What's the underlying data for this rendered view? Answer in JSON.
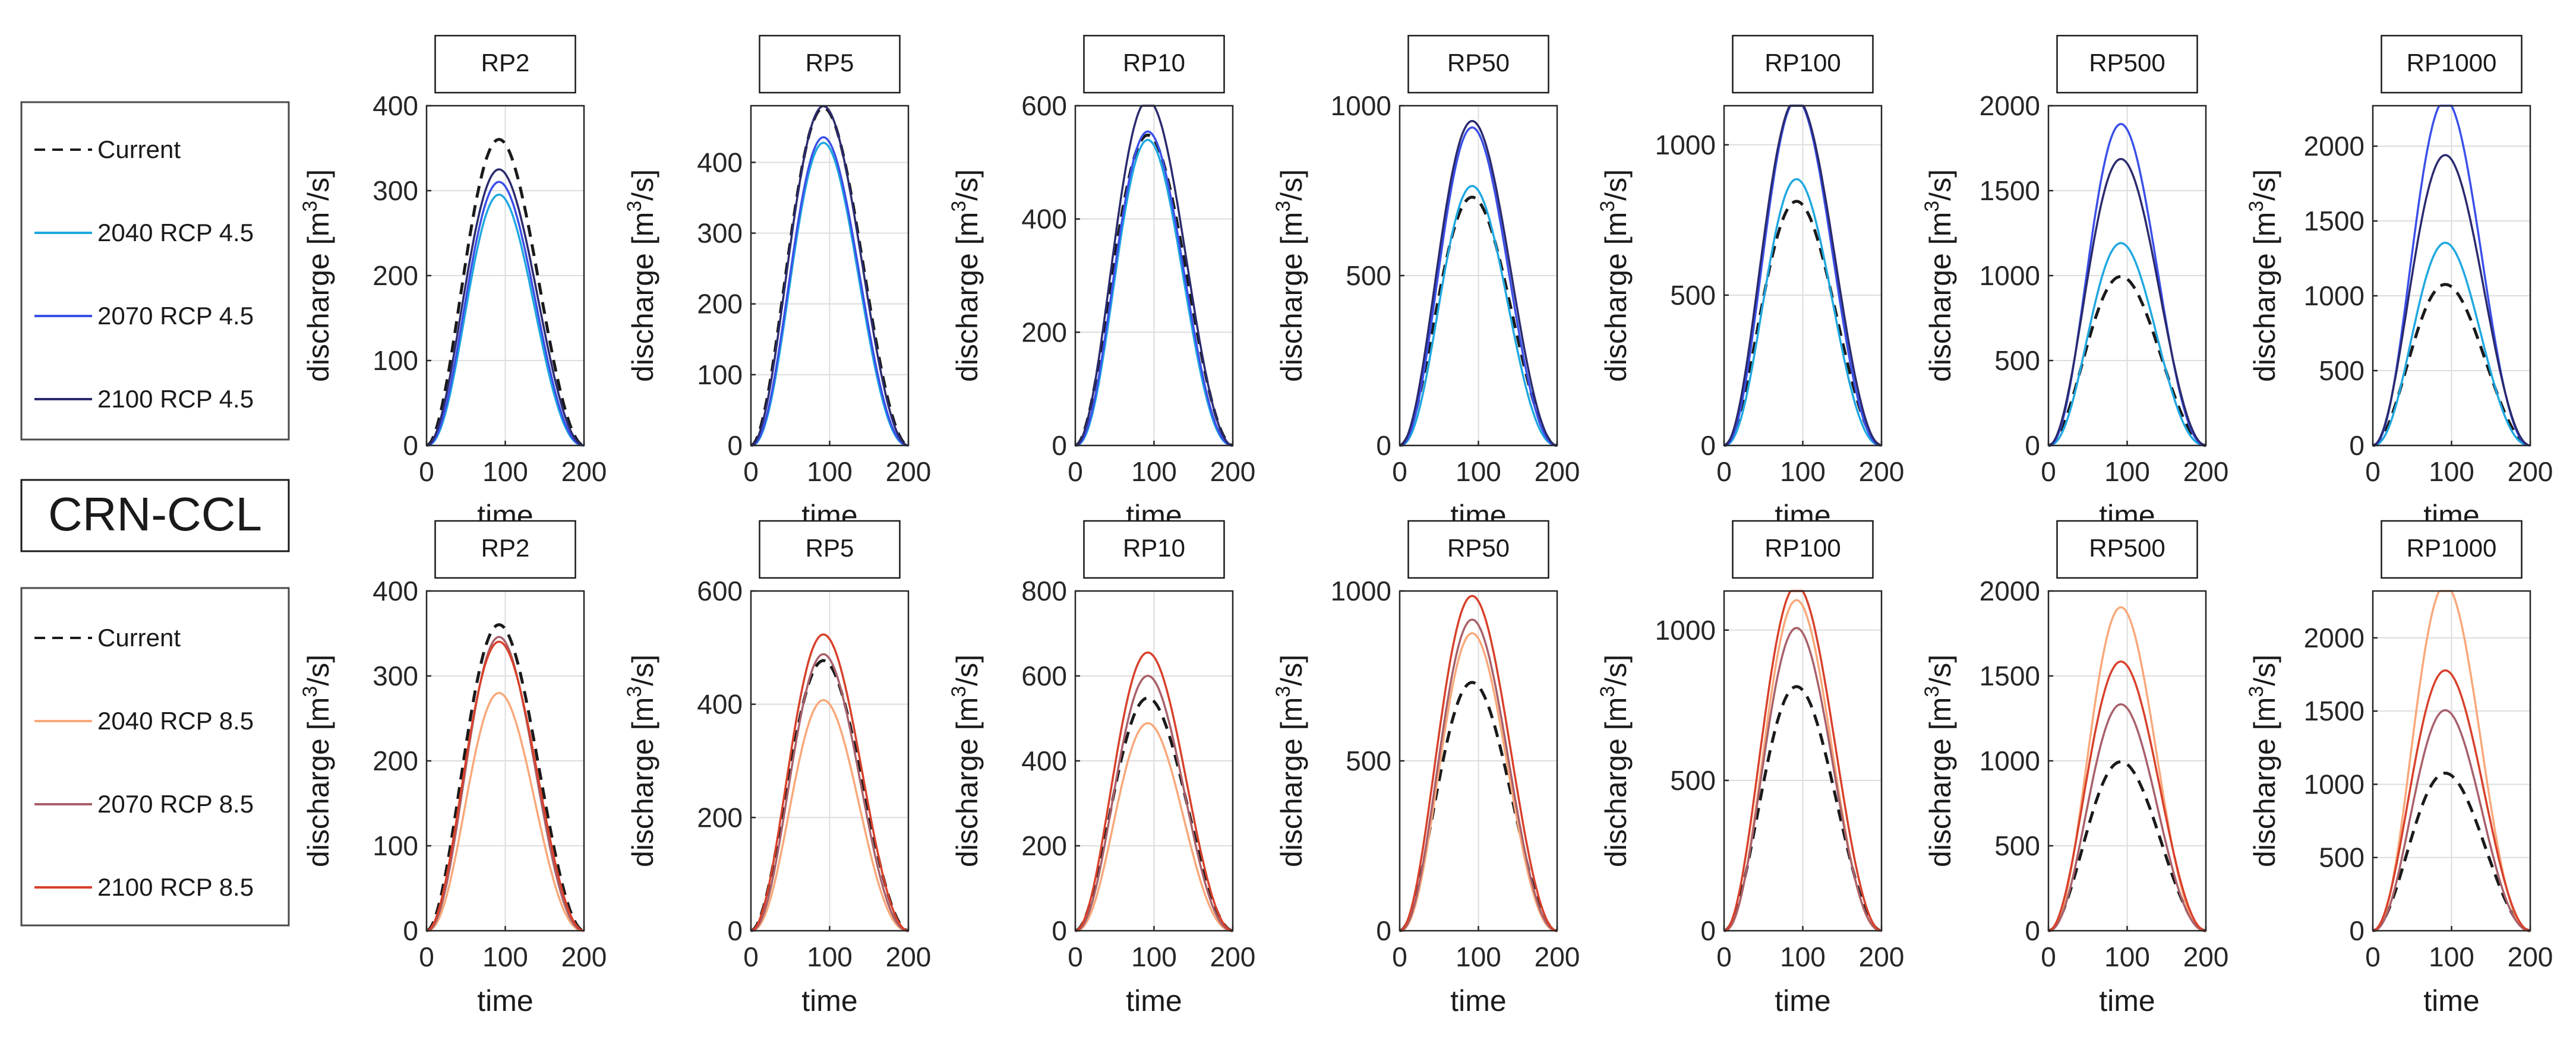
{
  "figure": {
    "label": "CRN-CCL",
    "colors": {
      "current": "#1a1a1a",
      "rcp45": [
        "#1fa8e0",
        "#3a4fe8",
        "#2a2a6e"
      ],
      "rcp85": [
        "#f9a87a",
        "#a8606a",
        "#d8402a"
      ]
    }
  },
  "legends": [
    {
      "entries": [
        "Current",
        "2040 RCP 4.5",
        "2070 RCP 4.5",
        "2100 RCP 4.5"
      ]
    },
    {
      "entries": [
        "Current",
        "2040 RCP 8.5",
        "2070 RCP 8.5",
        "2100 RCP 8.5"
      ]
    }
  ],
  "chart_data": {
    "type": "line",
    "xlabel": "time",
    "ylabel": "discharge [m",
    "ylabel_sup": "3",
    "ylabel_end": "/s]",
    "x_ticks": [
      "0",
      "100",
      "200"
    ],
    "xlim": [
      0,
      200
    ],
    "peak_time": 92,
    "rows": [
      {
        "scenario": "RCP 4.5",
        "series_names": [
          "Current",
          "2040 RCP 4.5",
          "2070 RCP 4.5",
          "2100 RCP 4.5"
        ],
        "panels": [
          {
            "title": "RP2",
            "ylim": [
              0,
              400
            ],
            "yticks": [
              "0",
              "100",
              "200",
              "300",
              "400"
            ],
            "peaks": [
              355,
              290,
              305,
              320
            ]
          },
          {
            "title": "RP5",
            "ylim": [
              0,
              480
            ],
            "yticks": [
              "0",
              "100",
              "200",
              "300",
              "400"
            ],
            "peaks": [
              470,
              420,
              428,
              472
            ]
          },
          {
            "title": "RP10",
            "ylim": [
              0,
              600
            ],
            "yticks": [
              "0",
              "200",
              "400",
              "600"
            ],
            "peaks": [
              540,
              530,
              545,
              600
            ]
          },
          {
            "title": "RP50",
            "ylim": [
              0,
              1000
            ],
            "yticks": [
              "0",
              "500",
              "1000"
            ],
            "peaks": [
              720,
              750,
              920,
              940
            ]
          },
          {
            "title": "RP100",
            "ylim": [
              0,
              1130
            ],
            "yticks": [
              "0",
              "500",
              "1000"
            ],
            "peaks": [
              800,
              870,
              1130,
              1135
            ]
          },
          {
            "title": "RP500",
            "ylim": [
              0,
              2000
            ],
            "yticks": [
              "0",
              "500",
              "1000",
              "1500",
              "2000"
            ],
            "peaks": [
              980,
              1170,
              1860,
              1660
            ]
          },
          {
            "title": "RP1000",
            "ylim": [
              0,
              2270
            ],
            "yticks": [
              "0",
              "500",
              "1000",
              "1500",
              "2000"
            ],
            "peaks": [
              1060,
              1330,
              2270,
              1910
            ]
          }
        ]
      },
      {
        "scenario": "RCP 8.5",
        "series_names": [
          "Current",
          "2040 RCP 8.5",
          "2070 RCP 8.5",
          "2100 RCP 8.5"
        ],
        "panels": [
          {
            "title": "RP2",
            "ylim": [
              0,
              400
            ],
            "yticks": [
              "0",
              "100",
              "200",
              "300",
              "400"
            ],
            "peaks": [
              355,
              275,
              340,
              335
            ]
          },
          {
            "title": "RP5",
            "ylim": [
              0,
              600
            ],
            "yticks": [
              "0",
              "200",
              "400",
              "600"
            ],
            "peaks": [
              470,
              400,
              480,
              515
            ]
          },
          {
            "title": "RP10",
            "ylim": [
              0,
              800
            ],
            "yticks": [
              "0",
              "200",
              "400",
              "600",
              "800"
            ],
            "peaks": [
              540,
              480,
              590,
              645
            ]
          },
          {
            "title": "RP50",
            "ylim": [
              0,
              1000
            ],
            "yticks": [
              "0",
              "500",
              "1000"
            ],
            "peaks": [
              720,
              860,
              900,
              970
            ]
          },
          {
            "title": "RP100",
            "ylim": [
              0,
              1130
            ],
            "yticks": [
              "0",
              "500",
              "1000"
            ],
            "peaks": [
              800,
              1080,
              990,
              1130
            ]
          },
          {
            "title": "RP500",
            "ylim": [
              0,
              2000
            ],
            "yticks": [
              "0",
              "500",
              "1000",
              "1500",
              "2000"
            ],
            "peaks": [
              980,
              1870,
              1310,
              1560
            ]
          },
          {
            "title": "RP1000",
            "ylim": [
              0,
              2320
            ],
            "yticks": [
              "0",
              "500",
              "1000",
              "1500",
              "2000"
            ],
            "peaks": [
              1060,
              2320,
              1480,
              1750
            ]
          }
        ]
      }
    ]
  }
}
